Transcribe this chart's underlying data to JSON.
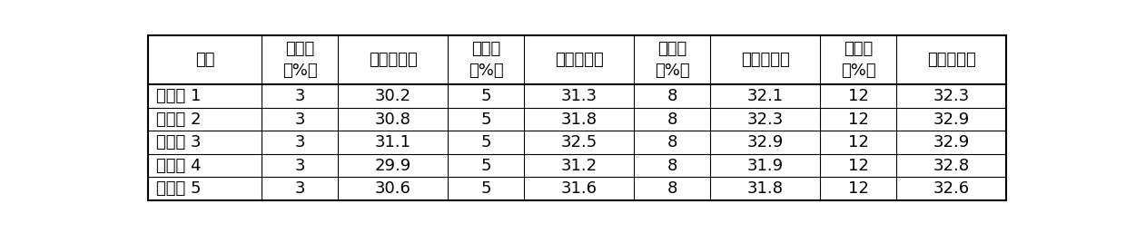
{
  "headers_row1": [
    "项目",
    "添加量\n（%）",
    "极限氧指数",
    "添加量\n（%）",
    "极限氧指数",
    "添加量\n（%）",
    "极限氧指数",
    "添加量\n（%）",
    "极限氧指数"
  ],
  "rows": [
    [
      "实施例 1",
      "3",
      "30.2",
      "5",
      "31.3",
      "8",
      "32.1",
      "12",
      "32.3"
    ],
    [
      "实施例 2",
      "3",
      "30.8",
      "5",
      "31.8",
      "8",
      "32.3",
      "12",
      "32.9"
    ],
    [
      "实施例 3",
      "3",
      "31.1",
      "5",
      "32.5",
      "8",
      "32.9",
      "12",
      "32.9"
    ],
    [
      "实施例 4",
      "3",
      "29.9",
      "5",
      "31.2",
      "8",
      "31.9",
      "12",
      "32.8"
    ],
    [
      "实施例 5",
      "3",
      "30.6",
      "5",
      "31.6",
      "8",
      "31.8",
      "12",
      "32.6"
    ]
  ],
  "col_widths_ratio": [
    1.35,
    0.9,
    1.3,
    0.9,
    1.3,
    0.9,
    1.3,
    0.9,
    1.3
  ],
  "background_color": "#ffffff",
  "border_color": "#000000",
  "text_color": "#000000",
  "font_size": 13,
  "header_font_size": 13
}
